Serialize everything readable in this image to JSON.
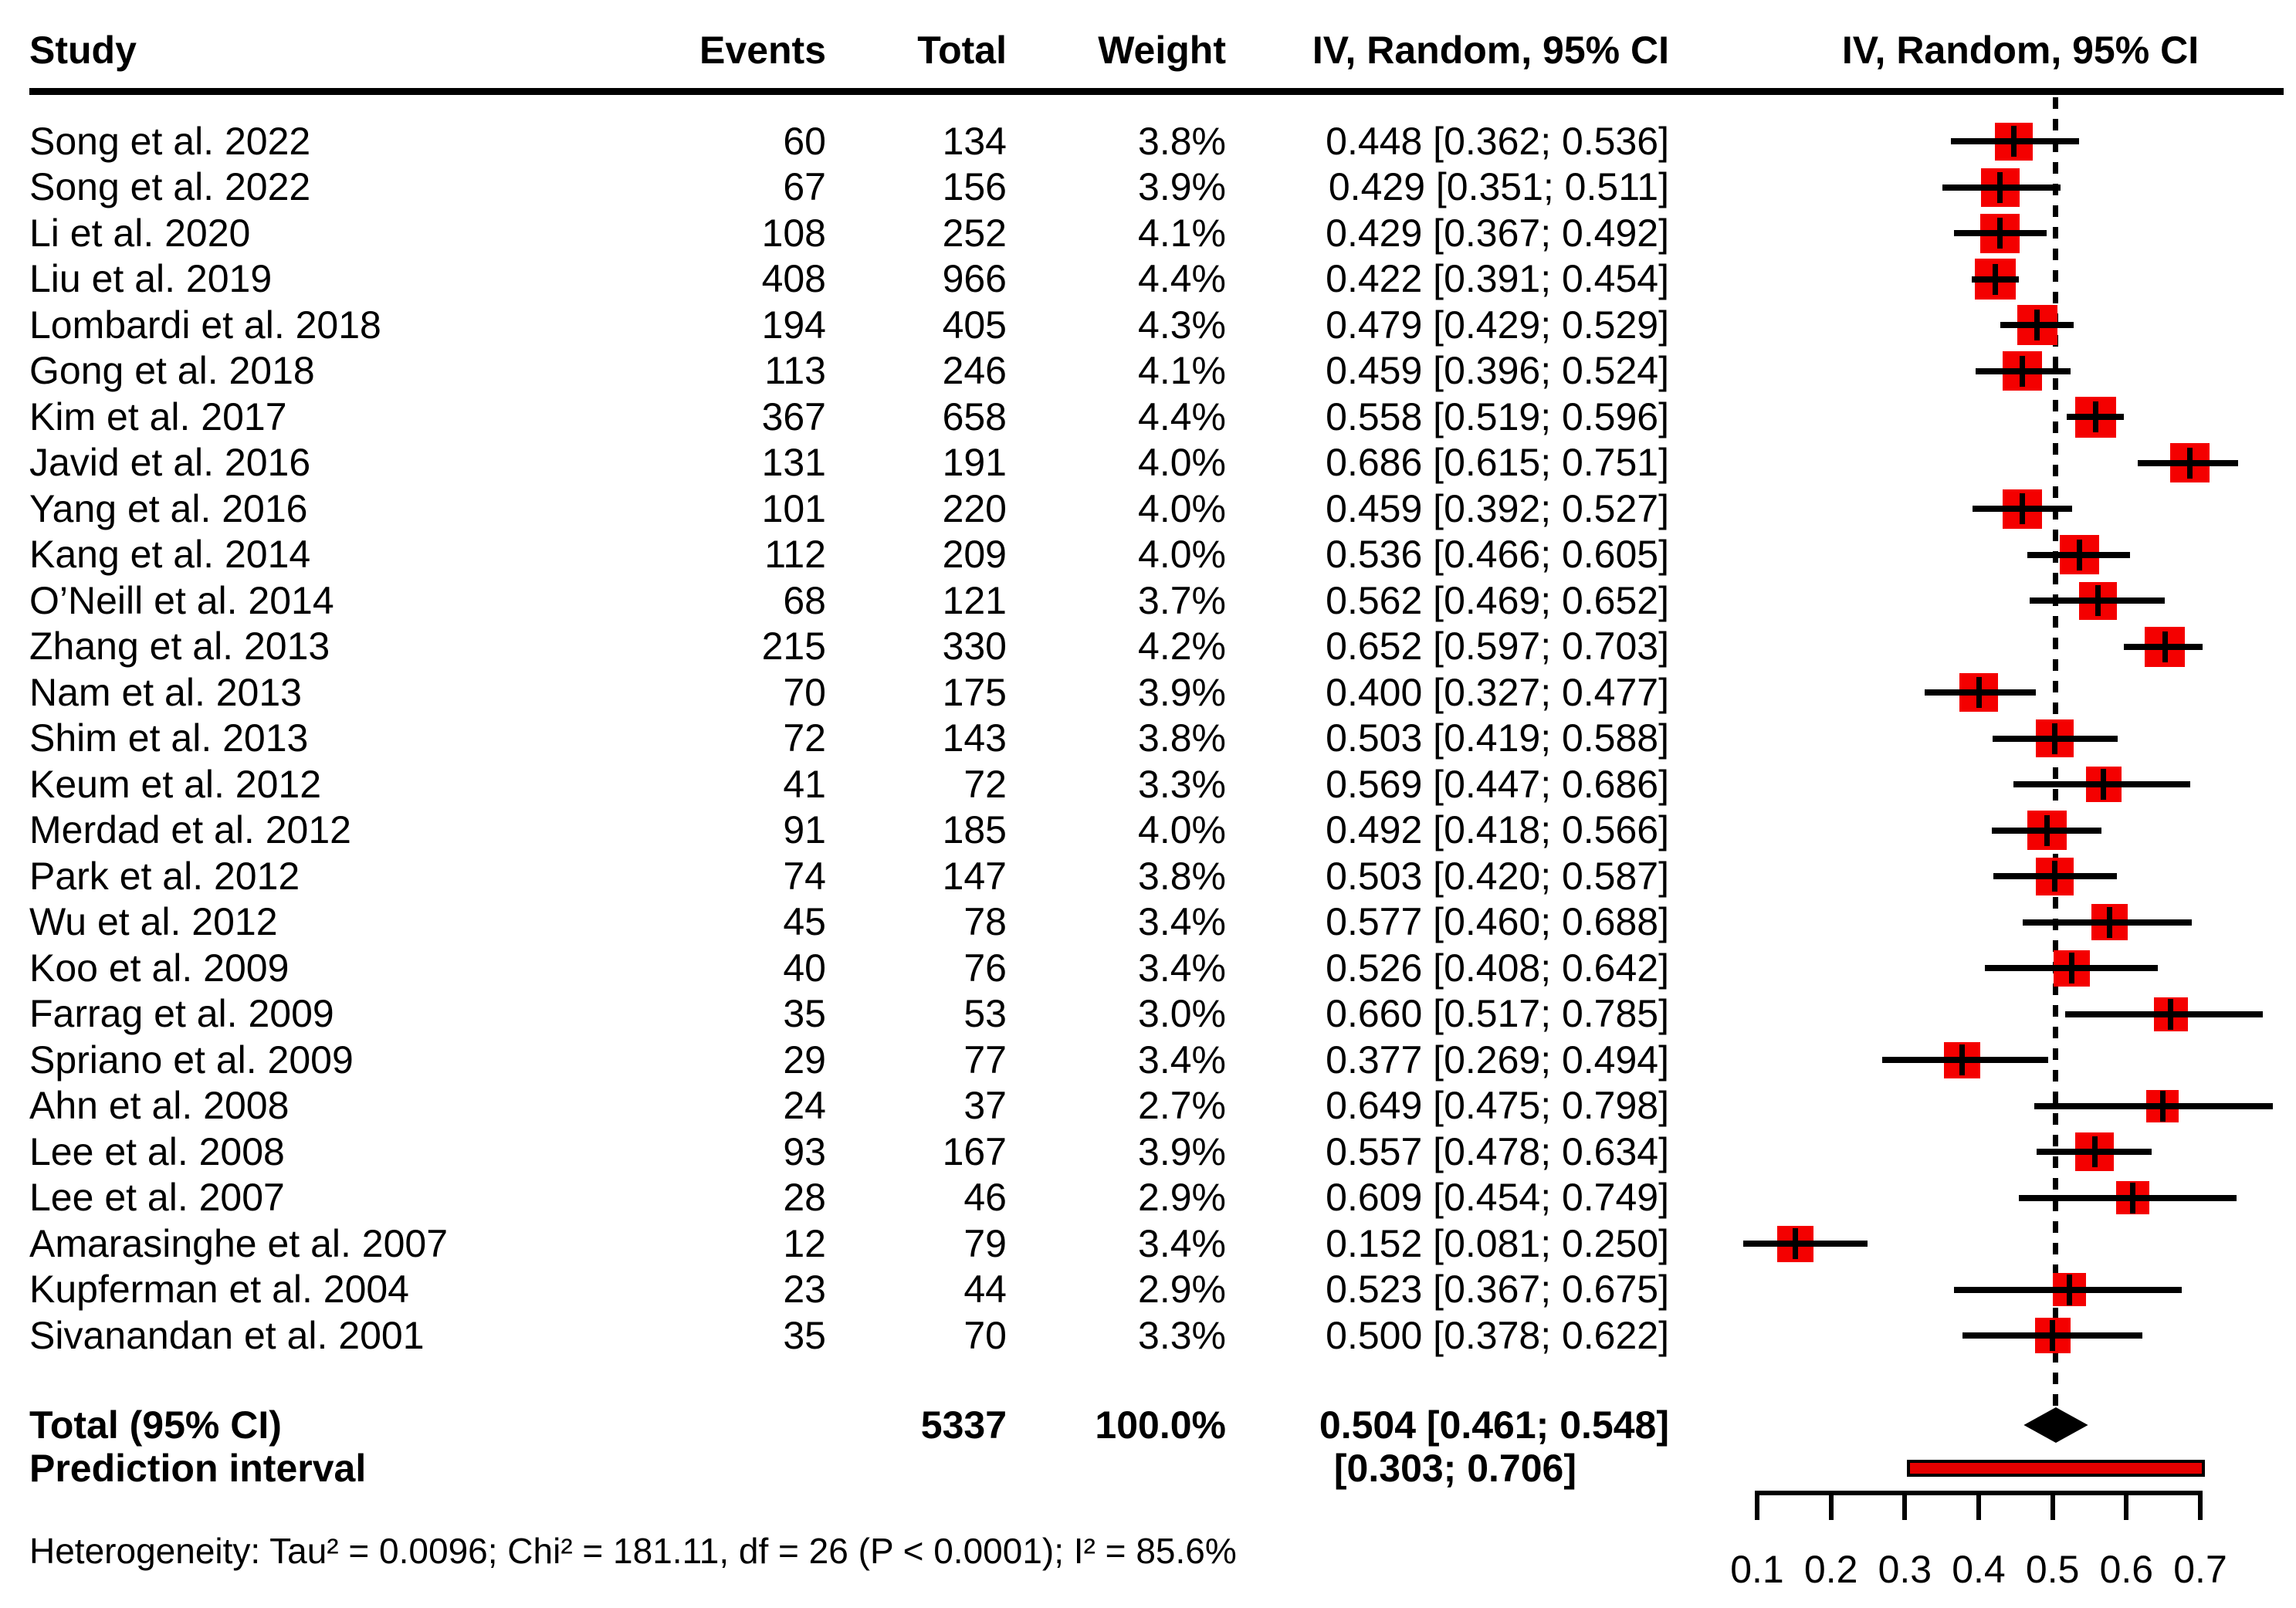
{
  "header": {
    "study": "Study",
    "events": "Events",
    "total": "Total",
    "weight": "Weight",
    "ci_text_col": "IV, Random, 95% CI",
    "ci_plot_col": "IV, Random, 95% CI"
  },
  "chart_data": {
    "type": "forest",
    "effect_model": "IV, Random, 95% CI",
    "xlim": [
      0.1,
      0.7
    ],
    "x_axis": {
      "ticks": [
        0.1,
        0.2,
        0.3,
        0.4,
        0.5,
        0.6,
        0.7
      ],
      "labels": [
        "0.1",
        "0.2",
        "0.3",
        "0.4",
        "0.5",
        "0.6",
        "0.7"
      ]
    },
    "reference_line": 0.504,
    "studies": [
      {
        "study": "Song et al. 2022",
        "events": 60,
        "total": 134,
        "weight": "3.8%",
        "weight_pct": 3.8,
        "mean": 0.448,
        "lower": 0.362,
        "upper": 0.536,
        "ci_text": "0.448 [0.362; 0.536]"
      },
      {
        "study": "Song et al. 2022",
        "events": 67,
        "total": 156,
        "weight": "3.9%",
        "weight_pct": 3.9,
        "mean": 0.429,
        "lower": 0.351,
        "upper": 0.511,
        "ci_text": "0.429 [0.351; 0.511]"
      },
      {
        "study": "Li et al. 2020",
        "events": 108,
        "total": 252,
        "weight": "4.1%",
        "weight_pct": 4.1,
        "mean": 0.429,
        "lower": 0.367,
        "upper": 0.492,
        "ci_text": "0.429 [0.367; 0.492]"
      },
      {
        "study": "Liu et al. 2019",
        "events": 408,
        "total": 966,
        "weight": "4.4%",
        "weight_pct": 4.4,
        "mean": 0.422,
        "lower": 0.391,
        "upper": 0.454,
        "ci_text": "0.422 [0.391; 0.454]"
      },
      {
        "study": "Lombardi et al. 2018",
        "events": 194,
        "total": 405,
        "weight": "4.3%",
        "weight_pct": 4.3,
        "mean": 0.479,
        "lower": 0.429,
        "upper": 0.529,
        "ci_text": "0.479 [0.429; 0.529]"
      },
      {
        "study": "Gong et al. 2018",
        "events": 113,
        "total": 246,
        "weight": "4.1%",
        "weight_pct": 4.1,
        "mean": 0.459,
        "lower": 0.396,
        "upper": 0.524,
        "ci_text": "0.459 [0.396; 0.524]"
      },
      {
        "study": "Kim et al. 2017",
        "events": 367,
        "total": 658,
        "weight": "4.4%",
        "weight_pct": 4.4,
        "mean": 0.558,
        "lower": 0.519,
        "upper": 0.596,
        "ci_text": "0.558 [0.519; 0.596]"
      },
      {
        "study": "Javid et al. 2016",
        "events": 131,
        "total": 191,
        "weight": "4.0%",
        "weight_pct": 4.0,
        "mean": 0.686,
        "lower": 0.615,
        "upper": 0.751,
        "ci_text": "0.686 [0.615; 0.751]"
      },
      {
        "study": "Yang et al. 2016",
        "events": 101,
        "total": 220,
        "weight": "4.0%",
        "weight_pct": 4.0,
        "mean": 0.459,
        "lower": 0.392,
        "upper": 0.527,
        "ci_text": "0.459 [0.392; 0.527]"
      },
      {
        "study": "Kang et al. 2014",
        "events": 112,
        "total": 209,
        "weight": "4.0%",
        "weight_pct": 4.0,
        "mean": 0.536,
        "lower": 0.466,
        "upper": 0.605,
        "ci_text": "0.536 [0.466; 0.605]"
      },
      {
        "study": "O’Neill et al. 2014",
        "events": 68,
        "total": 121,
        "weight": "3.7%",
        "weight_pct": 3.7,
        "mean": 0.562,
        "lower": 0.469,
        "upper": 0.652,
        "ci_text": "0.562 [0.469; 0.652]"
      },
      {
        "study": "Zhang et al. 2013",
        "events": 215,
        "total": 330,
        "weight": "4.2%",
        "weight_pct": 4.2,
        "mean": 0.652,
        "lower": 0.597,
        "upper": 0.703,
        "ci_text": "0.652 [0.597; 0.703]"
      },
      {
        "study": "Nam et al. 2013",
        "events": 70,
        "total": 175,
        "weight": "3.9%",
        "weight_pct": 3.9,
        "mean": 0.4,
        "lower": 0.327,
        "upper": 0.477,
        "ci_text": "0.400 [0.327; 0.477]"
      },
      {
        "study": "Shim et al. 2013",
        "events": 72,
        "total": 143,
        "weight": "3.8%",
        "weight_pct": 3.8,
        "mean": 0.503,
        "lower": 0.419,
        "upper": 0.588,
        "ci_text": "0.503 [0.419; 0.588]"
      },
      {
        "study": "Keum et al. 2012",
        "events": 41,
        "total": 72,
        "weight": "3.3%",
        "weight_pct": 3.3,
        "mean": 0.569,
        "lower": 0.447,
        "upper": 0.686,
        "ci_text": "0.569 [0.447; 0.686]"
      },
      {
        "study": "Merdad et al. 2012",
        "events": 91,
        "total": 185,
        "weight": "4.0%",
        "weight_pct": 4.0,
        "mean": 0.492,
        "lower": 0.418,
        "upper": 0.566,
        "ci_text": "0.492 [0.418; 0.566]"
      },
      {
        "study": "Park et al. 2012",
        "events": 74,
        "total": 147,
        "weight": "3.8%",
        "weight_pct": 3.8,
        "mean": 0.503,
        "lower": 0.42,
        "upper": 0.587,
        "ci_text": "0.503 [0.420; 0.587]"
      },
      {
        "study": "Wu et al. 2012",
        "events": 45,
        "total": 78,
        "weight": "3.4%",
        "weight_pct": 3.4,
        "mean": 0.577,
        "lower": 0.46,
        "upper": 0.688,
        "ci_text": "0.577 [0.460; 0.688]"
      },
      {
        "study": "Koo et al. 2009",
        "events": 40,
        "total": 76,
        "weight": "3.4%",
        "weight_pct": 3.4,
        "mean": 0.526,
        "lower": 0.408,
        "upper": 0.642,
        "ci_text": "0.526 [0.408; 0.642]"
      },
      {
        "study": "Farrag et al. 2009",
        "events": 35,
        "total": 53,
        "weight": "3.0%",
        "weight_pct": 3.0,
        "mean": 0.66,
        "lower": 0.517,
        "upper": 0.785,
        "ci_text": "0.660 [0.517; 0.785]"
      },
      {
        "study": "Spriano et al. 2009",
        "events": 29,
        "total": 77,
        "weight": "3.4%",
        "weight_pct": 3.4,
        "mean": 0.377,
        "lower": 0.269,
        "upper": 0.494,
        "ci_text": "0.377 [0.269; 0.494]"
      },
      {
        "study": "Ahn et al. 2008",
        "events": 24,
        "total": 37,
        "weight": "2.7%",
        "weight_pct": 2.7,
        "mean": 0.649,
        "lower": 0.475,
        "upper": 0.798,
        "ci_text": "0.649 [0.475; 0.798]"
      },
      {
        "study": "Lee et al. 2008",
        "events": 93,
        "total": 167,
        "weight": "3.9%",
        "weight_pct": 3.9,
        "mean": 0.557,
        "lower": 0.478,
        "upper": 0.634,
        "ci_text": "0.557 [0.478; 0.634]"
      },
      {
        "study": "Lee et al. 2007",
        "events": 28,
        "total": 46,
        "weight": "2.9%",
        "weight_pct": 2.9,
        "mean": 0.609,
        "lower": 0.454,
        "upper": 0.749,
        "ci_text": "0.609 [0.454; 0.749]"
      },
      {
        "study": "Amarasinghe et al. 2007",
        "events": 12,
        "total": 79,
        "weight": "3.4%",
        "weight_pct": 3.4,
        "mean": 0.152,
        "lower": 0.081,
        "upper": 0.25,
        "ci_text": "0.152 [0.081; 0.250]"
      },
      {
        "study": "Kupferman et al. 2004",
        "events": 23,
        "total": 44,
        "weight": "2.9%",
        "weight_pct": 2.9,
        "mean": 0.523,
        "lower": 0.367,
        "upper": 0.675,
        "ci_text": "0.523 [0.367; 0.675]"
      },
      {
        "study": "Sivanandan et al. 2001",
        "events": 35,
        "total": 70,
        "weight": "3.3%",
        "weight_pct": 3.3,
        "mean": 0.5,
        "lower": 0.378,
        "upper": 0.622,
        "ci_text": "0.500 [0.378; 0.622]"
      }
    ],
    "total": {
      "label": "Total (95% CI)",
      "total": "5337",
      "weight": "100.0%",
      "mean": 0.504,
      "lower": 0.461,
      "upper": 0.548,
      "ci_text": "0.504 [0.461; 0.548]"
    },
    "prediction": {
      "label": "Prediction interval",
      "lower": 0.303,
      "upper": 0.706,
      "ci_text": "[0.303; 0.706]"
    },
    "heterogeneity_text": "Heterogeneity: Tau² = 0.0096; Chi² = 181.11, df = 26 (P < 0.0001); I² = 85.6%",
    "colors": {
      "square": "#f40000",
      "line": "#000000",
      "diamond": "#000000",
      "prediction_fill": "#e60000",
      "prediction_border": "#000000",
      "reference_line": "#000000"
    }
  }
}
